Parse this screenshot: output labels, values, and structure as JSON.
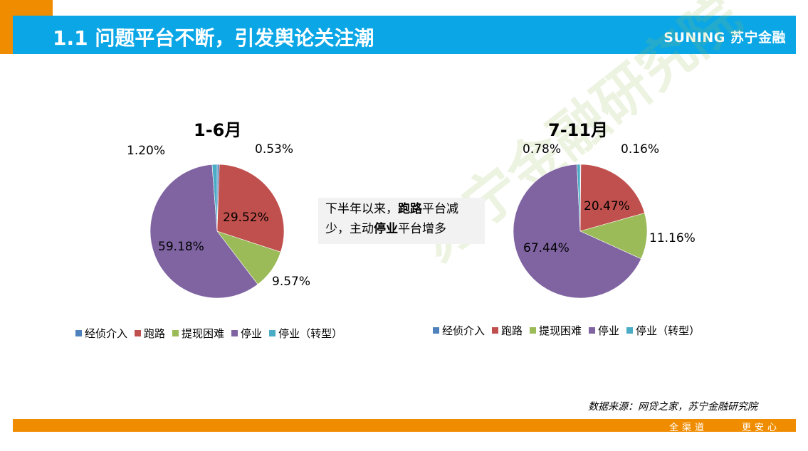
{
  "header": {
    "title": "1.1 问题平台不断，引发舆论关注潮",
    "brand": "SUNING 苏宁金融"
  },
  "watermark": "苏宁金融研究院",
  "legend": [
    {
      "label": "经侦介入",
      "color": "#4F81BD"
    },
    {
      "label": "跑路",
      "color": "#C0504D"
    },
    {
      "label": "提现困难",
      "color": "#9BBB59"
    },
    {
      "label": "停业",
      "color": "#8064A2"
    },
    {
      "label": "停业（转型）",
      "color": "#4BACC6"
    }
  ],
  "callout": {
    "line1_pre": "下半年以来，",
    "line1_bold": "跑路",
    "line1_post": "平台减",
    "line2_pre": "少，主动",
    "line2_bold": "停业",
    "line2_post": "平台增多"
  },
  "source": "数据来源：网贷之家，苏宁金融研究院",
  "footer": {
    "slogan_left": "全渠道",
    "slogan_right": "更安心"
  },
  "chart_data": [
    {
      "type": "pie",
      "title": "1-6月",
      "categories": [
        "经侦介入",
        "跑路",
        "提现困难",
        "停业",
        "停业（转型）"
      ],
      "values": [
        0.53,
        29.52,
        9.57,
        59.18,
        1.2
      ],
      "labels": [
        "0.53%",
        "29.52%",
        "9.57%",
        "59.18%",
        "1.20%"
      ],
      "legend_position": "bottom"
    },
    {
      "type": "pie",
      "title": "7-11月",
      "categories": [
        "经侦介入",
        "跑路",
        "提现困难",
        "停业",
        "停业（转型）"
      ],
      "values": [
        0.16,
        20.47,
        11.16,
        67.44,
        0.78
      ],
      "labels": [
        "0.16%",
        "20.47%",
        "11.16%",
        "67.44%",
        "0.78%"
      ],
      "legend_position": "bottom"
    }
  ]
}
